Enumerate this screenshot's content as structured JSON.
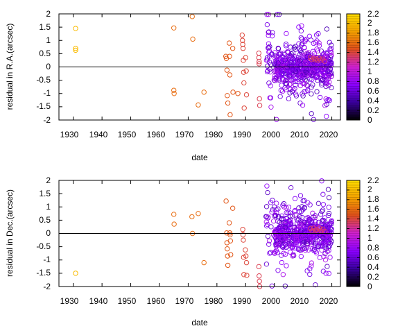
{
  "chart_data": [
    {
      "type": "scatter",
      "title": "",
      "xlabel": "date",
      "ylabel": "residual in R.A.(arcsec)",
      "xlim": [
        1925,
        2023
      ],
      "ylim": [
        -2,
        2
      ],
      "x_ticks": [
        "1930",
        "1940",
        "1950",
        "1960",
        "1970",
        "1980",
        "1990",
        "2000",
        "2010",
        "2020"
      ],
      "y_ticks": [
        "-2",
        "-1.5",
        "-1",
        "-0.5",
        "0",
        "0.5",
        "1",
        "1.5",
        "2"
      ],
      "zero_line": true,
      "grid": false,
      "colorbar": {
        "range": [
          0,
          2.2
        ],
        "ticks": [
          "0",
          "0.2",
          "0.4",
          "0.6",
          "0.8",
          "1",
          "1.2",
          "1.4",
          "1.6",
          "1.8",
          "2",
          "2.2"
        ],
        "palette": [
          "#000000",
          "#3b00a0",
          "#8a00ff",
          "#d020d0",
          "#e0501a",
          "#f5a000",
          "#ffdc00"
        ]
      },
      "points": [
        [
          1930.8,
          1.45,
          2.0
        ],
        [
          1930.8,
          0.7,
          2.0
        ],
        [
          1930.8,
          0.63,
          2.0
        ],
        [
          1965.0,
          1.47,
          1.6
        ],
        [
          1965.0,
          -0.88,
          1.6
        ],
        [
          1965.1,
          -1.0,
          1.6
        ],
        [
          1971.4,
          1.9,
          1.6
        ],
        [
          1971.6,
          1.05,
          1.6
        ],
        [
          1973.5,
          -1.43,
          1.6
        ],
        [
          1975.5,
          -0.95,
          1.6
        ],
        [
          1983.1,
          0.4,
          1.5
        ],
        [
          1983.3,
          0.32,
          1.5
        ],
        [
          1983.5,
          -0.12,
          1.5
        ],
        [
          1983.6,
          -1.08,
          1.5
        ],
        [
          1983.8,
          -1.36,
          1.5
        ],
        [
          1984.3,
          0.9,
          1.5
        ],
        [
          1984.4,
          0.4,
          1.5
        ],
        [
          1984.5,
          -0.3,
          1.5
        ],
        [
          1984.6,
          -1.8,
          1.5
        ],
        [
          1985.5,
          0.7,
          1.5
        ],
        [
          1985.6,
          -0.95,
          1.5
        ],
        [
          1987.3,
          -1.0,
          1.5
        ],
        [
          1988.8,
          1.2,
          1.4
        ],
        [
          1988.9,
          1.0,
          1.4
        ],
        [
          1989.0,
          0.85,
          1.4
        ],
        [
          1989.1,
          0.7,
          1.4
        ],
        [
          1989.2,
          0.25,
          1.4
        ],
        [
          1989.3,
          -0.2,
          1.4
        ],
        [
          1989.4,
          -0.6,
          1.4
        ],
        [
          1989.5,
          -1.55,
          1.4
        ],
        [
          1990.0,
          0.35,
          1.4
        ],
        [
          1990.2,
          -0.15,
          1.4
        ],
        [
          1990.3,
          -1.05,
          1.4
        ],
        [
          1994.6,
          0.52,
          1.35
        ],
        [
          1994.6,
          0.35,
          1.35
        ],
        [
          1994.7,
          0.2,
          1.35
        ],
        [
          1994.7,
          0.12,
          1.35
        ],
        [
          1994.8,
          -1.2,
          1.35
        ],
        [
          1994.9,
          -1.45,
          1.35
        ],
        [
          2012.5,
          0.35,
          1.3
        ],
        [
          2013.0,
          0.28,
          1.3
        ],
        [
          2013.6,
          0.32,
          1.3
        ],
        [
          2014.1,
          0.27,
          1.3
        ],
        [
          2014.6,
          0.3,
          1.3
        ],
        [
          2015.1,
          0.25,
          1.3
        ],
        [
          2015.6,
          0.33,
          1.3
        ],
        [
          2016.1,
          0.26,
          1.3
        ],
        [
          2016.8,
          0.3,
          1.3
        ],
        [
          2017.5,
          0.22,
          1.3
        ]
      ],
      "dense_cluster": {
        "note": "several hundred purple points",
        "x_range": [
          1997,
          2020
        ],
        "y_spread_sd": 0.75,
        "core_x_range": [
          2000,
          2020
        ],
        "core_y_spread_sd": 0.28,
        "value_range": [
          0.45,
          0.95
        ]
      }
    },
    {
      "type": "scatter",
      "title": "",
      "xlabel": "date",
      "ylabel": "residual in Dec.(arcsec)",
      "xlim": [
        1925,
        2023
      ],
      "ylim": [
        -2,
        2
      ],
      "x_ticks": [
        "1930",
        "1940",
        "1950",
        "1960",
        "1970",
        "1980",
        "1990",
        "2000",
        "2010",
        "2020"
      ],
      "y_ticks": [
        "-2",
        "-1.5",
        "-1",
        "-0.5",
        "0",
        "0.5",
        "1",
        "1.5",
        "2"
      ],
      "zero_line": true,
      "grid": false,
      "colorbar": {
        "range": [
          0,
          2.2
        ],
        "ticks": [
          "0",
          "0.2",
          "0.4",
          "0.6",
          "0.8",
          "1",
          "1.2",
          "1.4",
          "1.6",
          "1.8",
          "2",
          "2.2"
        ],
        "palette": [
          "#000000",
          "#3b00a0",
          "#8a00ff",
          "#d020d0",
          "#e0501a",
          "#f5a000",
          "#ffdc00"
        ]
      },
      "points": [
        [
          1930.8,
          -1.5,
          2.0
        ],
        [
          1965.0,
          0.72,
          1.6
        ],
        [
          1965.1,
          0.35,
          1.6
        ],
        [
          1971.3,
          0.63,
          1.6
        ],
        [
          1971.5,
          0.0,
          1.6
        ],
        [
          1973.5,
          0.75,
          1.6
        ],
        [
          1975.5,
          -1.1,
          1.6
        ],
        [
          1983.2,
          1.22,
          1.5
        ],
        [
          1983.4,
          0.02,
          1.5
        ],
        [
          1983.5,
          -0.35,
          1.5
        ],
        [
          1983.6,
          -0.58,
          1.5
        ],
        [
          1983.7,
          -0.85,
          1.5
        ],
        [
          1983.8,
          -1.2,
          1.5
        ],
        [
          1984.3,
          0.4,
          1.5
        ],
        [
          1984.5,
          0.02,
          1.5
        ],
        [
          1984.6,
          -0.05,
          1.5
        ],
        [
          1984.7,
          -0.28,
          1.5
        ],
        [
          1984.8,
          -0.8,
          1.5
        ],
        [
          1985.5,
          0.95,
          1.5
        ],
        [
          1989.0,
          0.15,
          1.4
        ],
        [
          1989.1,
          -0.05,
          1.4
        ],
        [
          1989.2,
          -0.25,
          1.4
        ],
        [
          1989.3,
          -0.9,
          1.4
        ],
        [
          1989.4,
          -1.55,
          1.4
        ],
        [
          1989.9,
          -0.62,
          1.4
        ],
        [
          1990.1,
          -0.85,
          1.4
        ],
        [
          1990.3,
          -1.1,
          1.4
        ],
        [
          1990.4,
          -1.58,
          1.4
        ],
        [
          1994.6,
          -1.25,
          1.35
        ],
        [
          1994.7,
          -1.6,
          1.35
        ],
        [
          1994.8,
          -1.8,
          1.35
        ],
        [
          1994.9,
          -2.0,
          1.35
        ],
        [
          2012.5,
          0.18,
          1.3
        ],
        [
          2013.1,
          0.1,
          1.3
        ],
        [
          2013.7,
          0.2,
          1.3
        ],
        [
          2014.2,
          0.12,
          1.3
        ],
        [
          2014.7,
          0.15,
          1.3
        ],
        [
          2015.2,
          0.08,
          1.3
        ],
        [
          2015.7,
          0.2,
          1.3
        ],
        [
          2016.2,
          0.1,
          1.3
        ],
        [
          2016.9,
          0.16,
          1.3
        ],
        [
          2017.6,
          0.08,
          1.3
        ]
      ],
      "dense_cluster": {
        "note": "several hundred purple points",
        "x_range": [
          1997,
          2020
        ],
        "y_spread_sd": 0.75,
        "core_x_range": [
          2000,
          2020
        ],
        "core_y_spread_sd": 0.28,
        "value_range": [
          0.45,
          0.95
        ]
      }
    }
  ]
}
